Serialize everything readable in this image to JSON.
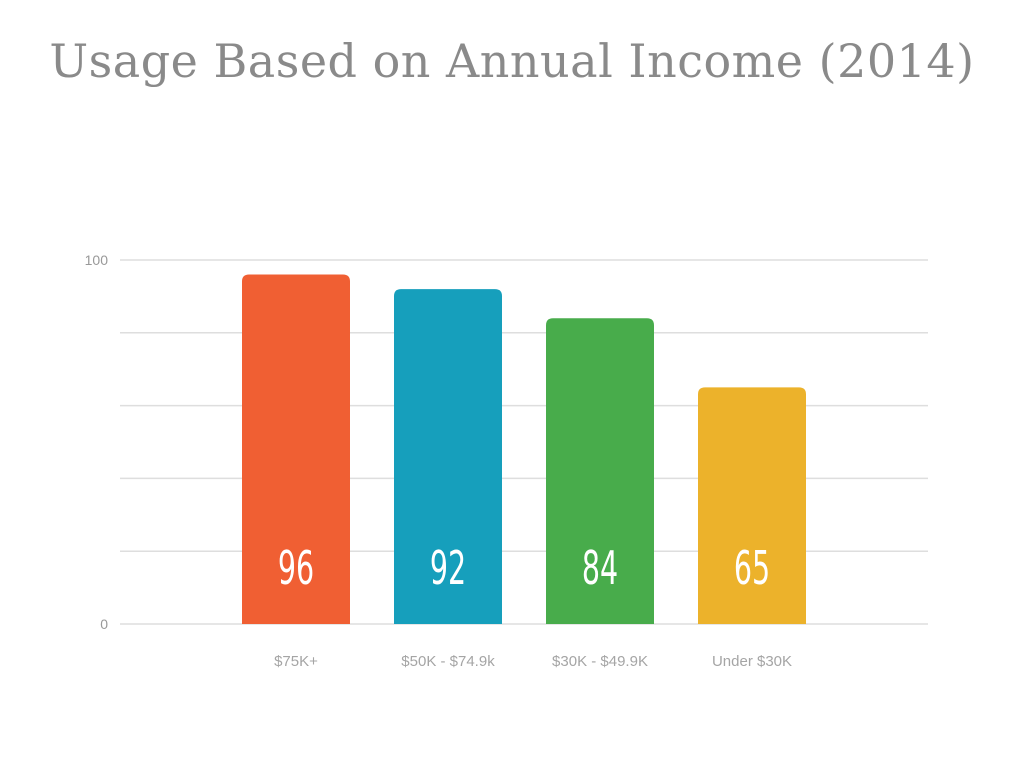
{
  "title": "Usage Based on Annual Income (2014)",
  "chart_data": {
    "type": "bar",
    "title": "Usage Based on Annual Income (2014)",
    "categories": [
      "$75K+",
      "$50K - $74.9k",
      "$30K - $49.9K",
      "Under $30K"
    ],
    "values": [
      96,
      92,
      84,
      65
    ],
    "value_labels": [
      "96",
      "92",
      "84",
      "65"
    ],
    "colors": [
      "#f05f33",
      "#169fbc",
      "#48ac4b",
      "#ecb22b"
    ],
    "ylim": [
      0,
      100
    ],
    "ytick_values": [
      0,
      20,
      40,
      60,
      80,
      100
    ],
    "ytick_labels": [
      "0",
      "100"
    ],
    "grid": true,
    "legend": "none",
    "xlabel": "",
    "ylabel": ""
  }
}
